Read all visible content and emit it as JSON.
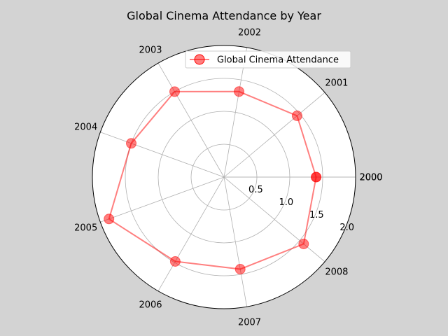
{
  "chart_data": {
    "type": "radar",
    "title": "Global Cinema Attendance by Year",
    "categories": [
      "2000",
      "2001",
      "2002",
      "2003",
      "2004",
      "2005",
      "2006",
      "2007",
      "2008",
      "2000"
    ],
    "series": [
      {
        "name": "Global Cinema Attendance",
        "values": [
          1.4,
          1.45,
          1.32,
          1.5,
          1.5,
          1.86,
          1.48,
          1.42,
          1.58,
          1.4
        ],
        "color": "#ff0000"
      }
    ],
    "radial_ticks": [
      "0.5",
      "1.0",
      "1.5",
      "2.0"
    ],
    "radial_tick_values": [
      0.5,
      1.0,
      1.5,
      2.0
    ],
    "rlim": [
      0,
      2.0
    ],
    "legend_position": "top-right",
    "grid": true
  }
}
